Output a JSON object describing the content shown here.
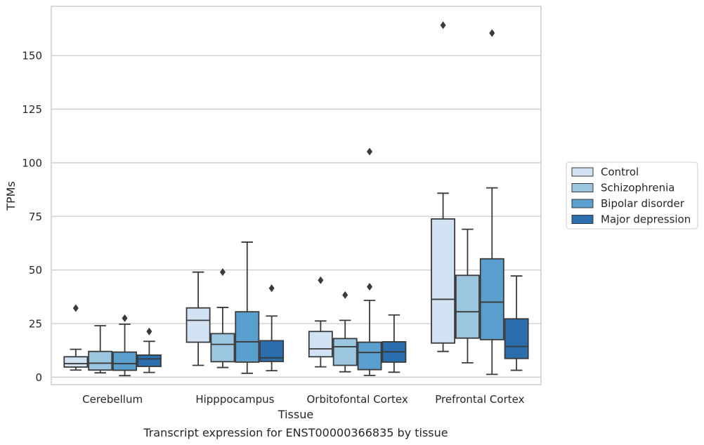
{
  "chart_data": {
    "type": "box",
    "xlabel": "Tissue",
    "ylabel": "TPMs",
    "caption": "Transcript expression for ENST00000366835 by tissue",
    "ylim": [
      -3.5,
      173
    ],
    "yticks": [
      0,
      25,
      50,
      75,
      100,
      125,
      150
    ],
    "grid": "horizontal",
    "legend_position": "right",
    "categories": [
      "Cerebellum",
      "Hipppocampus",
      "Orbitofontal Cortex",
      "Prefrontal Cortex"
    ],
    "series": [
      {
        "name": "Control",
        "color": "#d1e2f2",
        "boxes": [
          {
            "whislo": 3.3,
            "q1": 4.7,
            "med": 6.3,
            "q3": 9.5,
            "whishi": 13,
            "fliers": [
              32.2
            ]
          },
          {
            "whislo": 5.5,
            "q1": 16.3,
            "med": 26.5,
            "q3": 32.3,
            "whishi": 49,
            "fliers": []
          },
          {
            "whislo": 4.8,
            "q1": 9.5,
            "med": 13.2,
            "q3": 21.3,
            "whishi": 26.2,
            "fliers": [
              45.2
            ]
          },
          {
            "whislo": 12,
            "q1": 15.9,
            "med": 36.3,
            "q3": 73.8,
            "whishi": 85.8,
            "fliers": [
              164.2
            ]
          }
        ]
      },
      {
        "name": "Schizophrenia",
        "color": "#9cc5df",
        "boxes": [
          {
            "whislo": 2,
            "q1": 3.3,
            "med": 6.5,
            "q3": 12,
            "whishi": 24,
            "fliers": []
          },
          {
            "whislo": 4.5,
            "q1": 7.2,
            "med": 15.3,
            "q3": 20.3,
            "whishi": 32.5,
            "fliers": [
              49
            ]
          },
          {
            "whislo": 2.5,
            "q1": 5.5,
            "med": 14.2,
            "q3": 18,
            "whishi": 26.5,
            "fliers": [
              38.3
            ]
          },
          {
            "whislo": 6.7,
            "q1": 18.2,
            "med": 30.5,
            "q3": 47.5,
            "whishi": 69,
            "fliers": []
          }
        ]
      },
      {
        "name": "Bipolar disorder",
        "color": "#5a9fcd",
        "boxes": [
          {
            "whislo": 0.7,
            "q1": 3.2,
            "med": 6.3,
            "q3": 11.7,
            "whishi": 24.7,
            "fliers": [
              27.5
            ]
          },
          {
            "whislo": 1.8,
            "q1": 7,
            "med": 16.5,
            "q3": 30.5,
            "whishi": 63,
            "fliers": []
          },
          {
            "whislo": 0.8,
            "q1": 3.5,
            "med": 11.5,
            "q3": 16.3,
            "whishi": 35.8,
            "fliers": [
              42.2,
              105.2
            ]
          },
          {
            "whislo": 1.3,
            "q1": 17.5,
            "med": 35,
            "q3": 55.2,
            "whishi": 88.3,
            "fliers": [
              160.5
            ]
          }
        ]
      },
      {
        "name": "Major depression",
        "color": "#2b6ead",
        "boxes": [
          {
            "whislo": 2.2,
            "q1": 5,
            "med": 8.5,
            "q3": 10.3,
            "whishi": 16.7,
            "fliers": [
              21.3
            ]
          },
          {
            "whislo": 3,
            "q1": 7.3,
            "med": 9,
            "q3": 17,
            "whishi": 28.5,
            "fliers": [
              41.5
            ]
          },
          {
            "whislo": 2.3,
            "q1": 7,
            "med": 11.8,
            "q3": 16.5,
            "whishi": 29,
            "fliers": []
          },
          {
            "whislo": 3.2,
            "q1": 8.7,
            "med": 14.3,
            "q3": 27.2,
            "whishi": 47.2,
            "fliers": []
          }
        ]
      }
    ]
  }
}
